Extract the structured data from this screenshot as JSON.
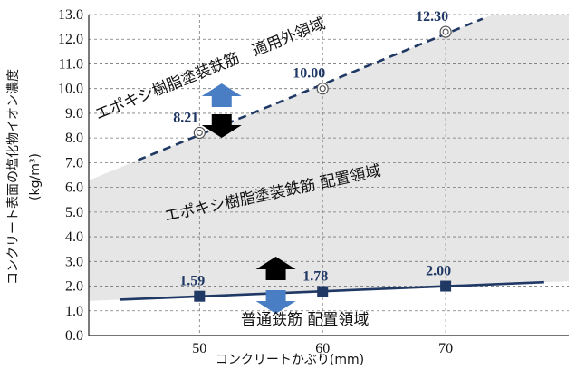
{
  "chart_data": {
    "type": "line",
    "x_ticks": [
      "50",
      "60",
      "70"
    ],
    "y_ticks": [
      "0.0",
      "1.0",
      "2.0",
      "3.0",
      "4.0",
      "5.0",
      "6.0",
      "7.0",
      "8.0",
      "9.0",
      "10.0",
      "11.0",
      "12.0",
      "13.0"
    ],
    "xlim": [
      41,
      80
    ],
    "ylim": [
      0,
      13
    ],
    "grid": true,
    "xlabel": "コンクリートかぶり(mm)",
    "ylabel_main": "コンクリート表面の塩化物イオン濃度",
    "ylabel_unit": "(kg/m³)",
    "series": [
      {
        "style": "dashed",
        "color": "#1f3864",
        "x": [
          50,
          60,
          70
        ],
        "values": [
          8.21,
          10.0,
          12.3
        ],
        "labels": [
          "8.21",
          "10.00",
          "12.30"
        ],
        "marker": "double-circle",
        "line_range": [
          45,
          73
        ]
      },
      {
        "style": "solid",
        "color": "#1f3864",
        "x": [
          50,
          60,
          70
        ],
        "values": [
          1.59,
          1.78,
          2.0
        ],
        "labels": [
          "1.59",
          "1.78",
          "2.00"
        ],
        "marker": "square",
        "line_range": [
          43.5,
          78
        ]
      }
    ],
    "annotations": {
      "region_upper": "エポキシ樹脂塗装鉄筋　適用外領域",
      "region_middle": "エポキシ樹脂塗装鉄筋 配置領域",
      "region_lower": "普通鉄筋 配置領域"
    },
    "colors": {
      "band_fill": "#e6e6e6",
      "arrow_blue": "#4a7ec4",
      "arrow_black": "#000000",
      "line": "#1f3864"
    }
  }
}
